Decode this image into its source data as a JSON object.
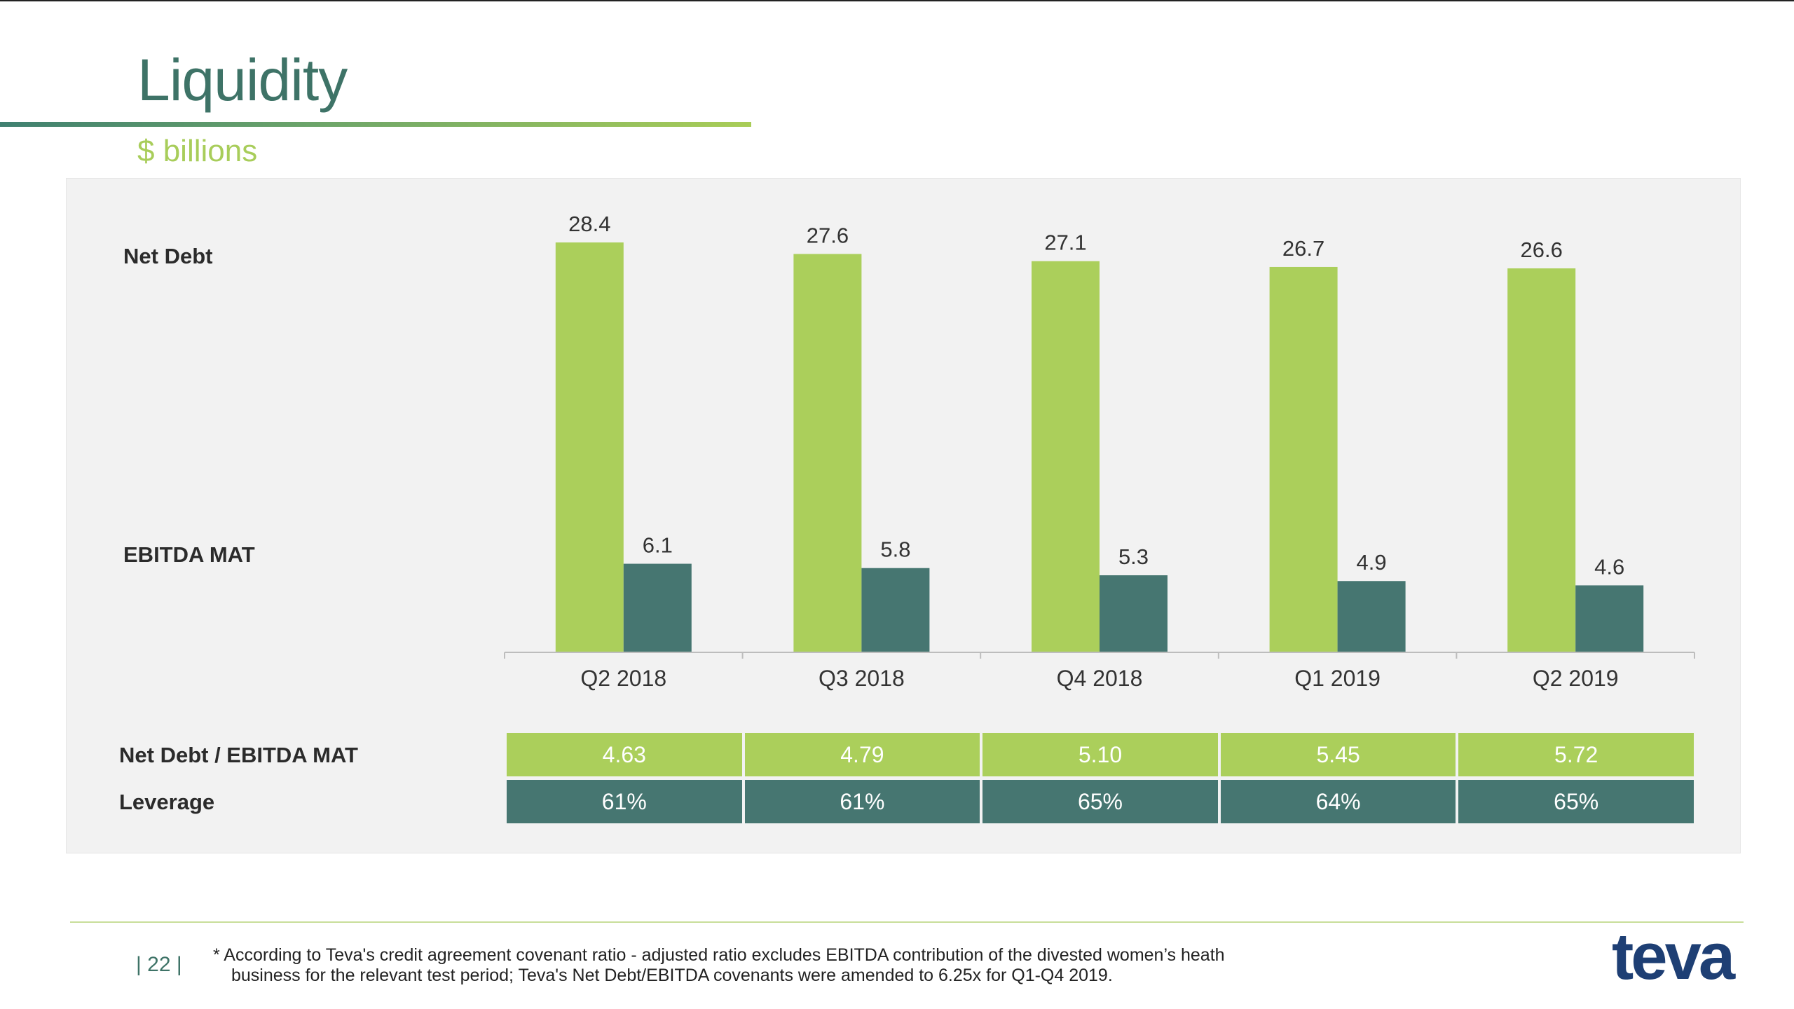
{
  "header": {
    "title": "Liquidity",
    "subtitle": "$ billions"
  },
  "row_labels": {
    "net_debt": "Net Debt",
    "ebitda": "EBITDA MAT",
    "ratio": "Net Debt / EBITDA MAT",
    "leverage": "Leverage"
  },
  "colors": {
    "net_debt": "#abcf5b",
    "ebitda": "#467671",
    "title": "#3e7367",
    "subtitle": "#a8cd5a"
  },
  "chart_data": {
    "type": "bar",
    "categories": [
      "Q2 2018",
      "Q3 2018",
      "Q4 2018",
      "Q1 2019",
      "Q2 2019"
    ],
    "series": [
      {
        "name": "Net Debt",
        "values": [
          28.4,
          27.6,
          27.1,
          26.7,
          26.6
        ]
      },
      {
        "name": "EBITDA MAT",
        "values": [
          6.1,
          5.8,
          5.3,
          4.9,
          4.6
        ]
      }
    ],
    "data_labels": {
      "net_debt": [
        "28.4",
        "27.6",
        "27.1",
        "26.7",
        "26.6"
      ],
      "ebitda": [
        "6.1",
        "5.8",
        "5.3",
        "4.9",
        "4.6"
      ]
    },
    "ylim": [
      0,
      28.4
    ],
    "grid": false,
    "legend": "none"
  },
  "table": {
    "ratio": [
      "4.63",
      "4.79",
      "5.10",
      "5.45",
      "5.72"
    ],
    "leverage": [
      "61%",
      "61%",
      "65%",
      "64%",
      "65%"
    ]
  },
  "footer": {
    "page_number": "| 22 |",
    "footnote_line1": "* According to Teva's credit agreement covenant ratio - adjusted ratio excludes EBITDA contribution of the divested women’s heath",
    "footnote_line2": "business for the relevant test period; Teva's Net Debt/EBITDA covenants were amended to 6.25x for Q1-Q4 2019.",
    "logo_text": "teva"
  }
}
